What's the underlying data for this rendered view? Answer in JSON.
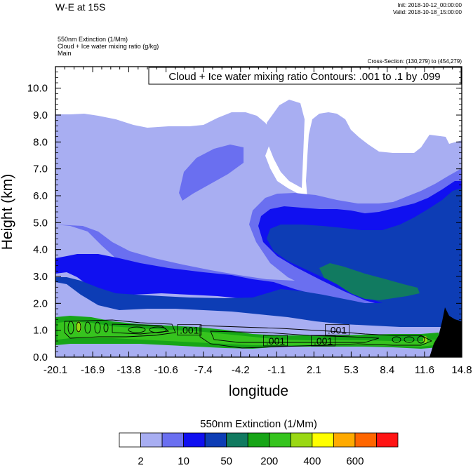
{
  "header": {
    "title": "W-E at 15S",
    "init": "Init: 2018-10-12_00:00:00",
    "valid": "Valid: 2018-10-18_15:00:00",
    "subtitle_lines": [
      "550nm Extinction   (1/Mm)",
      "Cloud + Ice water mixing ratio   (g/kg)",
      "Main"
    ],
    "cross_section": "Cross-Section: (130,279) to (454,279)"
  },
  "chart_data": {
    "type": "contour",
    "plot_header": "Cloud + Ice water mixing ratio Contours: .001 to .1 by .099",
    "xlabel": "longitude",
    "ylabel": "Height (km)",
    "x_ticks": [
      "-20.1",
      "-16.9",
      "-13.8",
      "-10.6",
      "-7.4",
      "-4.2",
      "-1.1",
      "2.1",
      "5.3",
      "8.4",
      "11.6",
      "14.8"
    ],
    "y_ticks": [
      "0.0",
      "1.0",
      "2.0",
      "3.0",
      "4.0",
      "5.0",
      "6.0",
      "7.0",
      "8.0",
      "9.0",
      "10.0"
    ],
    "xlim": [
      -20.1,
      14.8
    ],
    "ylim": [
      0,
      10.8
    ],
    "contour_labels": [
      {
        "text": ".001",
        "x": -8.6,
        "y": 1.0
      },
      {
        "text": ".001",
        "x": 4.1,
        "y": 1.0
      },
      {
        "text": ".001",
        "x": -1.2,
        "y": 0.6
      },
      {
        "text": ".001",
        "x": 2.9,
        "y": 0.6
      }
    ],
    "colorbar": {
      "title": "550nm Extinction  (1/Mm)",
      "tick_labels": [
        "2",
        "10",
        "50",
        "200",
        "400",
        "600"
      ],
      "colors": [
        "#ffffff",
        "#a8aef2",
        "#6a6ff0",
        "#1010f0",
        "#0d3db5",
        "#117a60",
        "#17a517",
        "#36c41e",
        "#9ad814",
        "#ffff00",
        "#ffaa00",
        "#ff6600",
        "#ff1414"
      ]
    }
  }
}
